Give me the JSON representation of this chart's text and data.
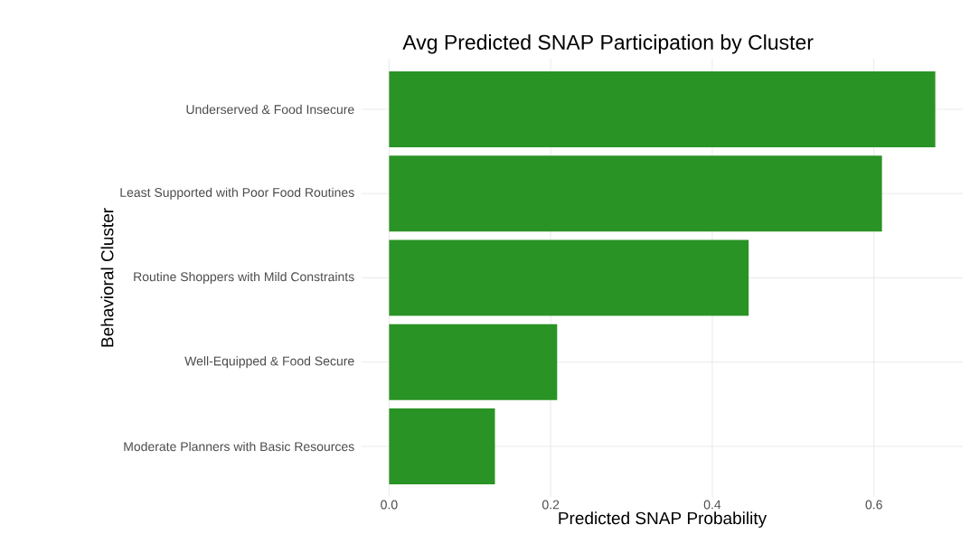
{
  "chart_data": {
    "type": "bar",
    "orientation": "horizontal",
    "title": "Avg Predicted SNAP Participation by Cluster",
    "xlabel": "Predicted SNAP Probability",
    "ylabel": "Behavioral Cluster",
    "categories": [
      "Underserved & Food Insecure",
      "Least Supported with Poor Food Routines",
      "Routine Shoppers with Mild Constraints",
      "Well-Equipped & Food Secure",
      "Moderate Planners with Basic Resources"
    ],
    "values": [
      0.676,
      0.61,
      0.445,
      0.208,
      0.131
    ],
    "color": "#2a9325",
    "xlim": [
      -0.034,
      0.71
    ],
    "xticks": [
      {
        "value": 0,
        "label": "0.0"
      },
      {
        "value": 0.2,
        "label": "0.2"
      },
      {
        "value": 0.4,
        "label": "0.4"
      },
      {
        "value": 0.6,
        "label": "0.6"
      }
    ],
    "grid": true
  }
}
